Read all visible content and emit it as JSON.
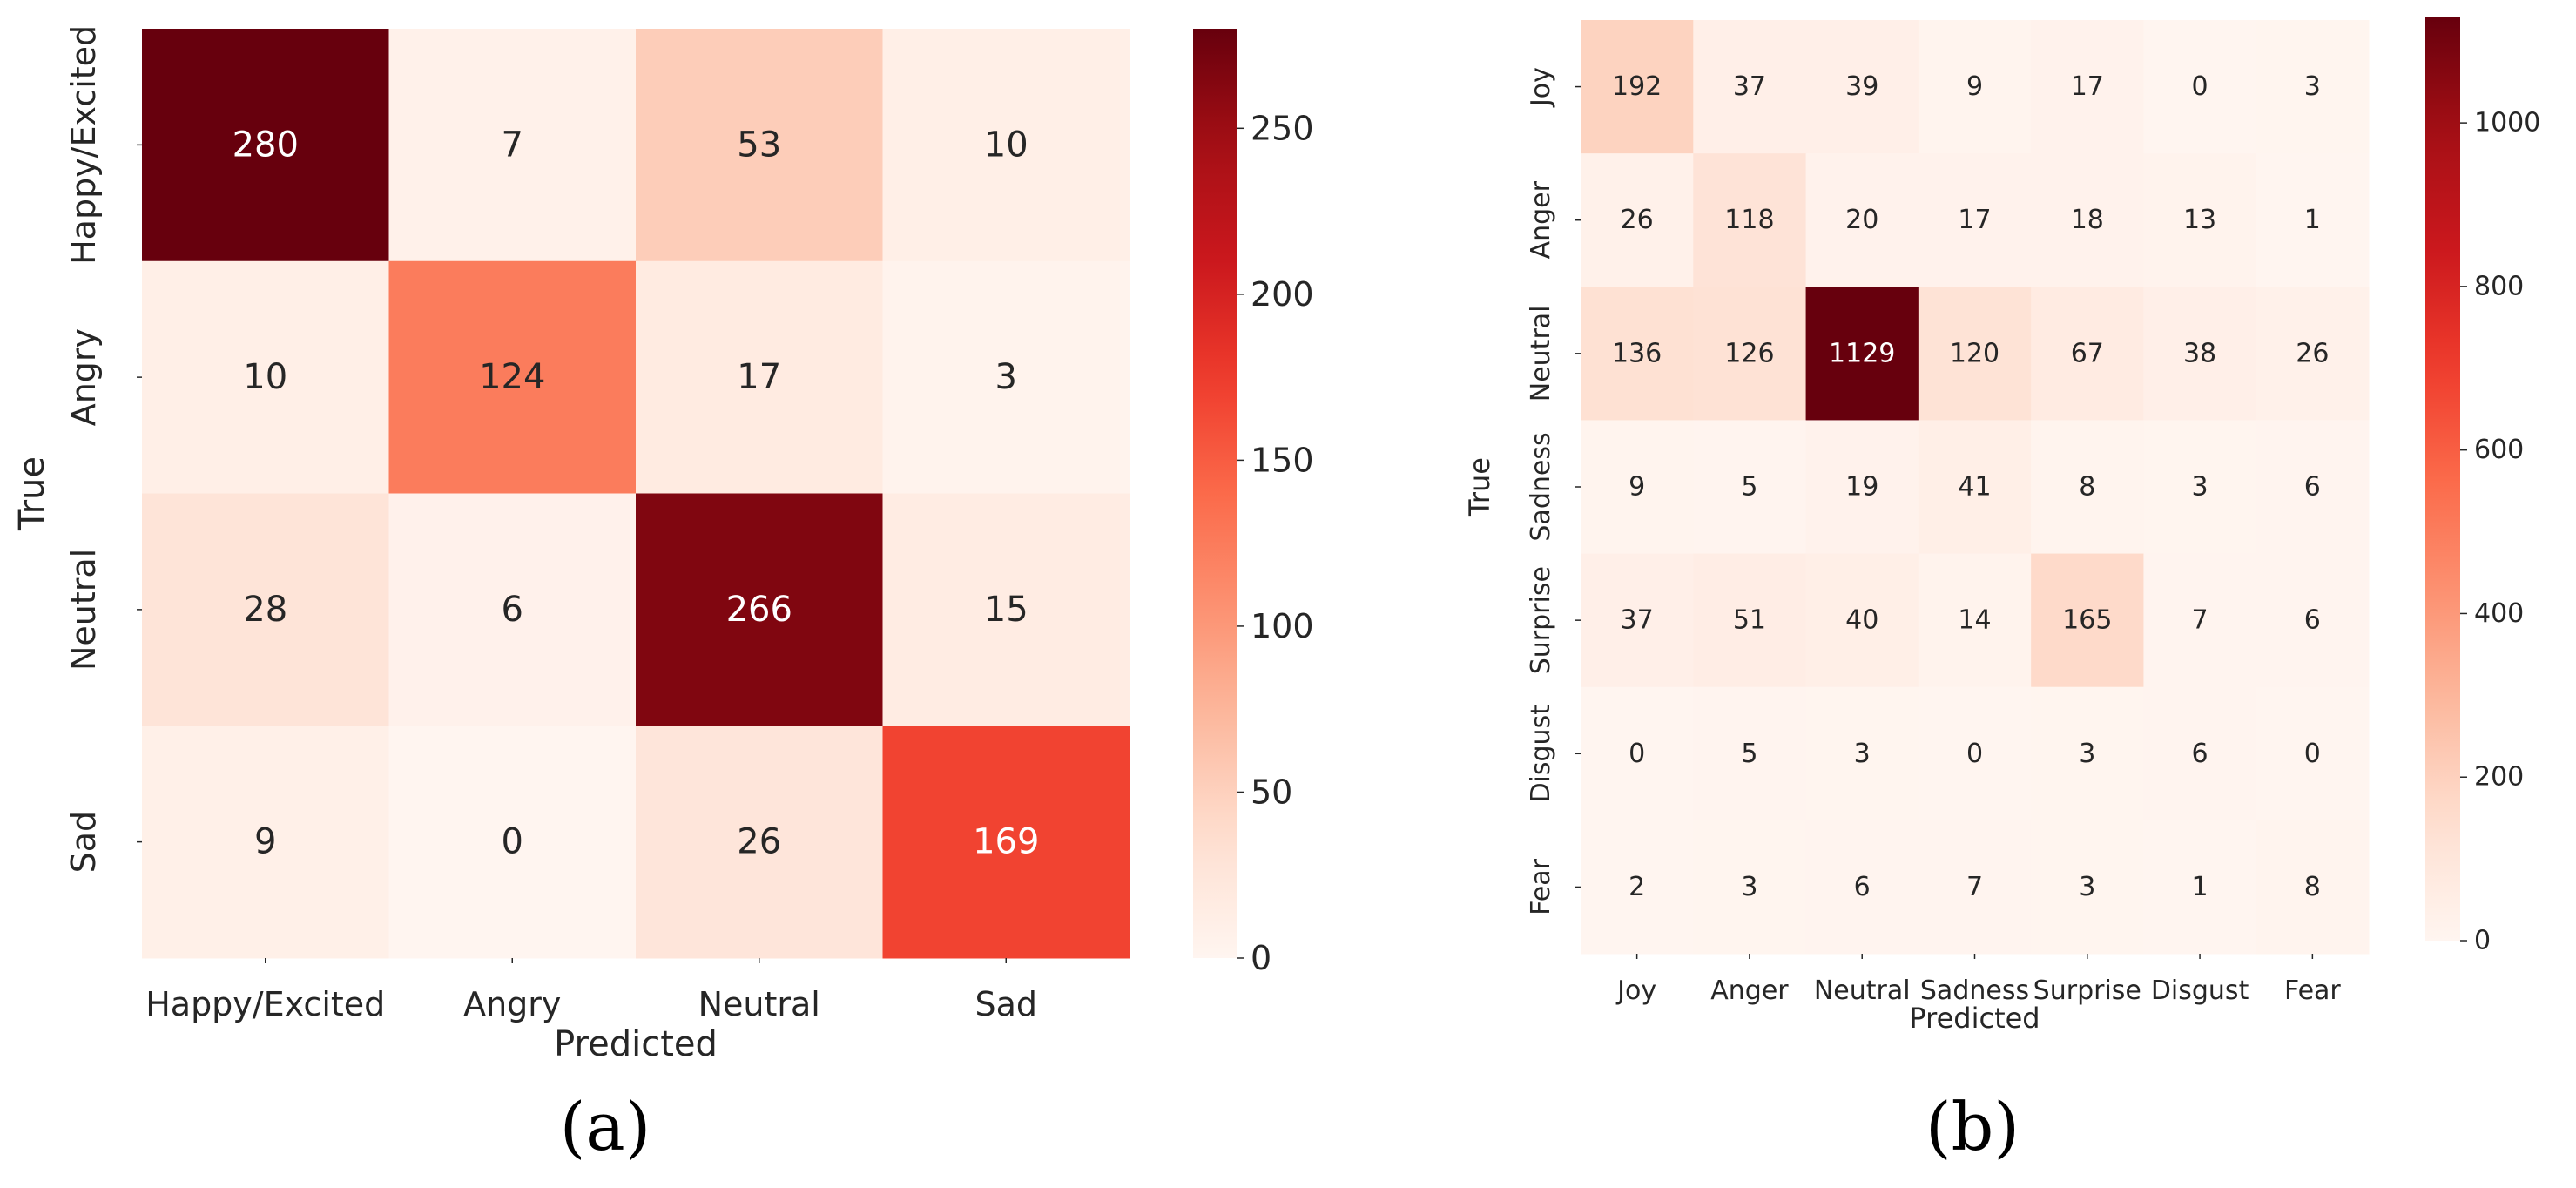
{
  "chart_data": [
    {
      "type": "heatmap",
      "panel_label": "(a)",
      "title": "",
      "xlabel": "Predicted",
      "ylabel": "True",
      "x_categories": [
        "Happy/Excited",
        "Angry",
        "Neutral",
        "Sad"
      ],
      "y_categories": [
        "Happy/Excited",
        "Angry",
        "Neutral",
        "Sad"
      ],
      "values": [
        [
          280,
          7,
          53,
          10
        ],
        [
          10,
          124,
          17,
          3
        ],
        [
          28,
          6,
          266,
          15
        ],
        [
          9,
          0,
          26,
          169
        ]
      ],
      "colorbar": {
        "colormap": "Reds",
        "vmin": 0,
        "vmax": 280,
        "ticks": [
          0,
          50,
          100,
          150,
          200,
          250
        ]
      }
    },
    {
      "type": "heatmap",
      "panel_label": "(b)",
      "title": "",
      "xlabel": "Predicted",
      "ylabel": "True",
      "x_categories": [
        "Joy",
        "Anger",
        "Neutral",
        "Sadness",
        "Surprise",
        "Disgust",
        "Fear"
      ],
      "y_categories": [
        "Joy",
        "Anger",
        "Neutral",
        "Sadness",
        "Surprise",
        "Disgust",
        "Fear"
      ],
      "values": [
        [
          192,
          37,
          39,
          9,
          17,
          0,
          3
        ],
        [
          26,
          118,
          20,
          17,
          18,
          13,
          1
        ],
        [
          136,
          126,
          1129,
          120,
          67,
          38,
          26
        ],
        [
          9,
          5,
          19,
          41,
          8,
          3,
          6
        ],
        [
          37,
          51,
          40,
          14,
          165,
          7,
          6
        ],
        [
          0,
          5,
          3,
          0,
          3,
          6,
          0
        ],
        [
          2,
          3,
          6,
          7,
          3,
          1,
          8
        ]
      ],
      "colorbar": {
        "colormap": "Reds",
        "vmin": 0,
        "vmax": 1129,
        "ticks": [
          0,
          200,
          400,
          600,
          800,
          1000
        ]
      }
    }
  ]
}
